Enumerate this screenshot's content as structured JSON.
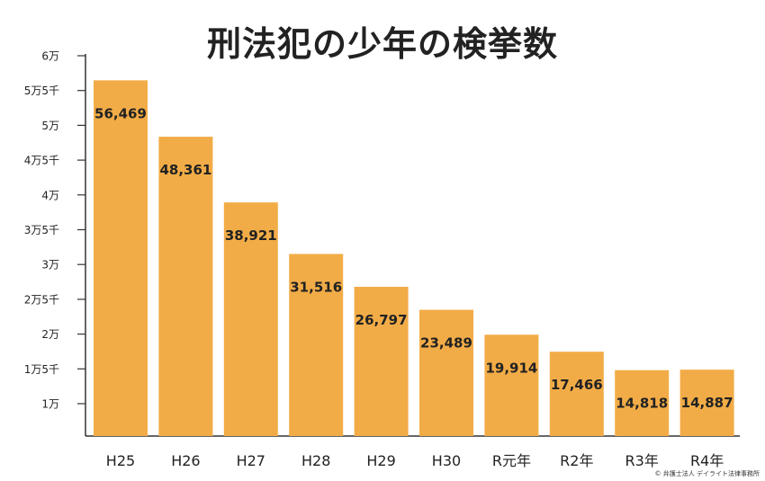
{
  "chart_data": {
    "type": "bar",
    "title": "刑法犯の少年の検挙数",
    "categories": [
      "H25",
      "H26",
      "H27",
      "H28",
      "H29",
      "H30",
      "R元年",
      "R2年",
      "R3年",
      "R4年"
    ],
    "values": [
      56469,
      48361,
      38921,
      31516,
      26797,
      23489,
      19914,
      17466,
      14818,
      14887
    ],
    "data_labels": [
      "56,469",
      "48,361",
      "38,921",
      "31,516",
      "26,797",
      "23,489",
      "19,914",
      "17,466",
      "14,818",
      "14,887"
    ],
    "yticks": [
      {
        "value": 10000,
        "label": "1万"
      },
      {
        "value": 15000,
        "label": "1万5千"
      },
      {
        "value": 20000,
        "label": "2万"
      },
      {
        "value": 25000,
        "label": "2万5千"
      },
      {
        "value": 30000,
        "label": "3万"
      },
      {
        "value": 35000,
        "label": "3万5千"
      },
      {
        "value": 40000,
        "label": "4万"
      },
      {
        "value": 45000,
        "label": "4万5千"
      },
      {
        "value": 50000,
        "label": "5万"
      },
      {
        "value": 55000,
        "label": "5万5千"
      },
      {
        "value": 60000,
        "label": "6万"
      }
    ],
    "ylim": [
      5000,
      60000
    ],
    "grid": false,
    "bar_color": "#F2AC47",
    "xlabel": "",
    "ylabel": ""
  },
  "copyright": "© 弁護士法人 デイライト法律事務所"
}
